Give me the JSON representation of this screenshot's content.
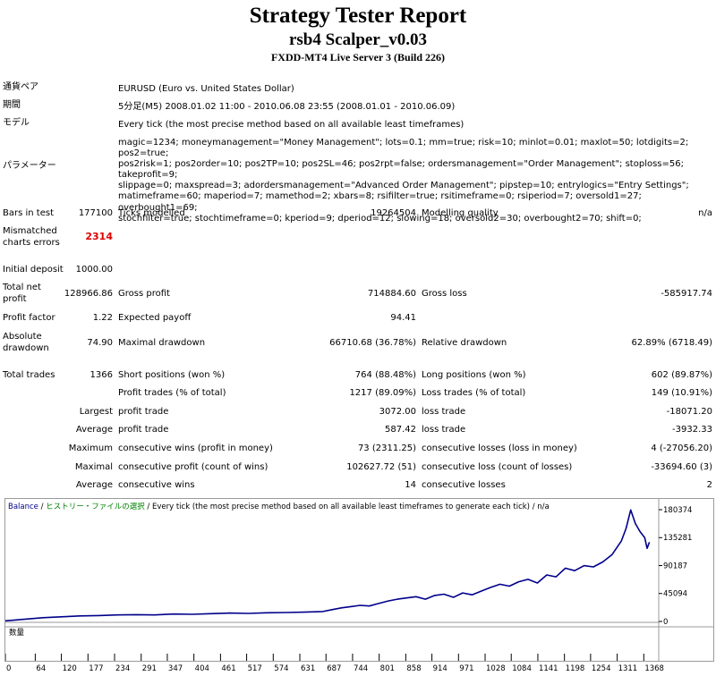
{
  "header": {
    "title": "Strategy Tester Report",
    "ea_name": "rsb4 Scalper_v0.03",
    "server": "FXDD-MT4 Live Server 3 (Build 226)"
  },
  "info": {
    "symbol_label": "通貨ペア",
    "symbol_value": "EURUSD (Euro vs. United States Dollar)",
    "period_label": "期間",
    "period_value": "5分足(M5) 2008.01.02 11:00 - 2010.06.08 23:55 (2008.01.01 - 2010.06.09)",
    "model_label": "モデル",
    "model_value": "Every tick (the most precise method based on all available least timeframes)",
    "params_label": "パラメーター",
    "params_lines": [
      "magic=1234; moneymanagement=\"Money Management\"; lots=0.1; mm=true; risk=10; minlot=0.01; maxlot=50; lotdigits=2; pos2=true;",
      "pos2risk=1; pos2order=10; pos2TP=10; pos2SL=46; pos2rpt=false; ordersmanagement=\"Order Management\"; stoploss=56; takeprofit=9;",
      "slippage=0; maxspread=3; adordersmanagement=\"Advanced Order Management\"; pipstep=10; entrylogics=\"Entry Settings\";",
      "matimeframe=60; maperiod=7; mamethod=2; xbars=8; rsifilter=true; rsitimeframe=0; rsiperiod=7; oversold1=27; overbought1=69;",
      "stochfilter=true; stochtimeframe=0; kperiod=9; dperiod=12; slowing=18; oversold2=30; overbought2=70; shift=0;"
    ]
  },
  "stats": {
    "bars_label": "Bars in test",
    "bars_value": "177100",
    "ticks_label": "Ticks modelled",
    "ticks_value": "19264504",
    "quality_label": "Modelling quality",
    "quality_value": "n/a",
    "mismatch_label_1": "Mismatched",
    "mismatch_label_2": "charts errors",
    "mismatch_value": "2314",
    "deposit_label": "Initial deposit",
    "deposit_value": "1000.00",
    "net_label_1": "Total net",
    "net_label_2": "profit",
    "net_value": "128966.86",
    "gross_profit_label": "Gross profit",
    "gross_profit_value": "714884.60",
    "gross_loss_label": "Gross loss",
    "gross_loss_value": "-585917.74",
    "pf_label": "Profit factor",
    "pf_value": "1.22",
    "payoff_label": "Expected payoff",
    "payoff_value": "94.41",
    "absdd_label_1": "Absolute",
    "absdd_label_2": "drawdown",
    "absdd_value": "74.90",
    "maxdd_label": "Maximal drawdown",
    "maxdd_value": "66710.68 (36.78%)",
    "reldd_label": "Relative drawdown",
    "reldd_value": "62.89% (6718.49)",
    "trades_label": "Total trades",
    "trades_value": "1366",
    "short_label": "Short positions (won %)",
    "short_value": "764 (88.48%)",
    "long_label": "Long positions (won %)",
    "long_value": "602 (89.87%)",
    "ptrades_label": "Profit trades (% of total)",
    "ptrades_value": "1217 (89.09%)",
    "ltrades_label": "Loss trades (% of total)",
    "ltrades_value": "149 (10.91%)",
    "largest_label": "Largest",
    "largest_profit_label": "profit trade",
    "largest_profit_value": "3072.00",
    "largest_loss_label": "loss trade",
    "largest_loss_value": "-18071.20",
    "average_label": "Average",
    "avg_profit_label": "profit trade",
    "avg_profit_value": "587.42",
    "avg_loss_label": "loss trade",
    "avg_loss_value": "-3932.33",
    "maximum_label": "Maximum",
    "max_wins_label": "consecutive wins (profit in money)",
    "max_wins_value": "73 (2311.25)",
    "max_losses_label": "consecutive losses (loss in money)",
    "max_losses_value": "4 (-27056.20)",
    "maximal_label": "Maximal",
    "maximal_profit_label": "consecutive profit (count of wins)",
    "maximal_profit_value": "102627.72 (51)",
    "maximal_loss_label": "consecutive loss (count of losses)",
    "maximal_loss_value": "-33694.60 (3)",
    "average2_label": "Average",
    "avg_wins_label": "consecutive wins",
    "avg_wins_value": "14",
    "avg_losses_label": "consecutive losses",
    "avg_losses_value": "2"
  },
  "chart_data": {
    "type": "line",
    "legend_balance": "Balance",
    "legend_history": "ヒストリー・ファイルの選択",
    "legend_rest": " / Every tick (the most precise method based on all available least timeframes to generate each tick) / n/a",
    "volume_label": "数量",
    "line_color": "#00008b",
    "x_ticks": [
      "0",
      "64",
      "120",
      "177",
      "234",
      "291",
      "347",
      "404",
      "461",
      "517",
      "574",
      "631",
      "687",
      "744",
      "801",
      "858",
      "914",
      "971",
      "1028",
      "1084",
      "1141",
      "1198",
      "1254",
      "1311",
      "1368"
    ],
    "x_tick_values": [
      0,
      64,
      120,
      177,
      234,
      291,
      347,
      404,
      461,
      517,
      574,
      631,
      687,
      744,
      801,
      858,
      914,
      971,
      1028,
      1084,
      1141,
      1198,
      1254,
      1311,
      1368
    ],
    "y_ticks": [
      "180374",
      "135281",
      "90187",
      "45094",
      "0"
    ],
    "y_tick_values": [
      180374,
      135281,
      90187,
      45094,
      0
    ],
    "xlim": [
      0,
      1400
    ],
    "ylim": [
      0,
      180374
    ],
    "series": [
      {
        "x": [
          0,
          40,
          80,
          120,
          160,
          200,
          240,
          280,
          320,
          360,
          400,
          440,
          480,
          520,
          560,
          600,
          640,
          680,
          700,
          720,
          740,
          760,
          780,
          800,
          820,
          840,
          860,
          880,
          900,
          920,
          940,
          960,
          980,
          1000,
          1020,
          1040,
          1060,
          1080,
          1100,
          1120,
          1140,
          1160,
          1180,
          1200,
          1220,
          1240,
          1260,
          1280,
          1300,
          1320,
          1330,
          1340,
          1350,
          1360,
          1370,
          1375,
          1380
        ],
        "y": [
          1000,
          3500,
          6000,
          7500,
          9000,
          9500,
          10500,
          11000,
          10500,
          12000,
          11500,
          12500,
          13500,
          13000,
          14000,
          14500,
          15000,
          16000,
          19000,
          22000,
          24000,
          26000,
          25000,
          29000,
          33000,
          36000,
          38000,
          40000,
          36000,
          42000,
          44000,
          39000,
          46000,
          43000,
          49000,
          55000,
          60000,
          57000,
          64000,
          68000,
          62000,
          75000,
          72000,
          86000,
          82000,
          90000,
          88000,
          96000,
          108000,
          130000,
          150000,
          180000,
          158000,
          145000,
          135000,
          118000,
          128000
        ]
      }
    ]
  }
}
